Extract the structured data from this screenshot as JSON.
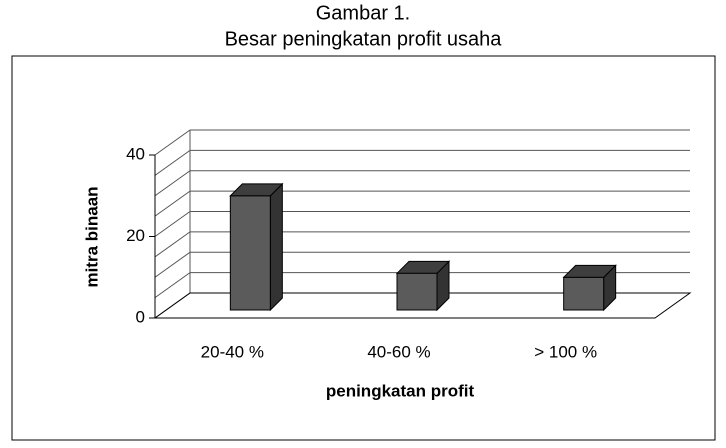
{
  "chart_data": {
    "type": "bar3d",
    "title": "Gambar 1.",
    "subtitle": "Besar peningkatan profit usaha",
    "x_label": "peningkatan profit",
    "y_label": "mitra binaan",
    "categories": [
      "20-40 %",
      "40-60 %",
      "> 100 %"
    ],
    "values": [
      28,
      9,
      8
    ],
    "color": "#5b5b5b",
    "ylim": [
      0,
      40
    ],
    "yticks": [
      0,
      20,
      40
    ],
    "minor_yticks": [
      5,
      10,
      15,
      25,
      30,
      35
    ],
    "grid": true
  }
}
